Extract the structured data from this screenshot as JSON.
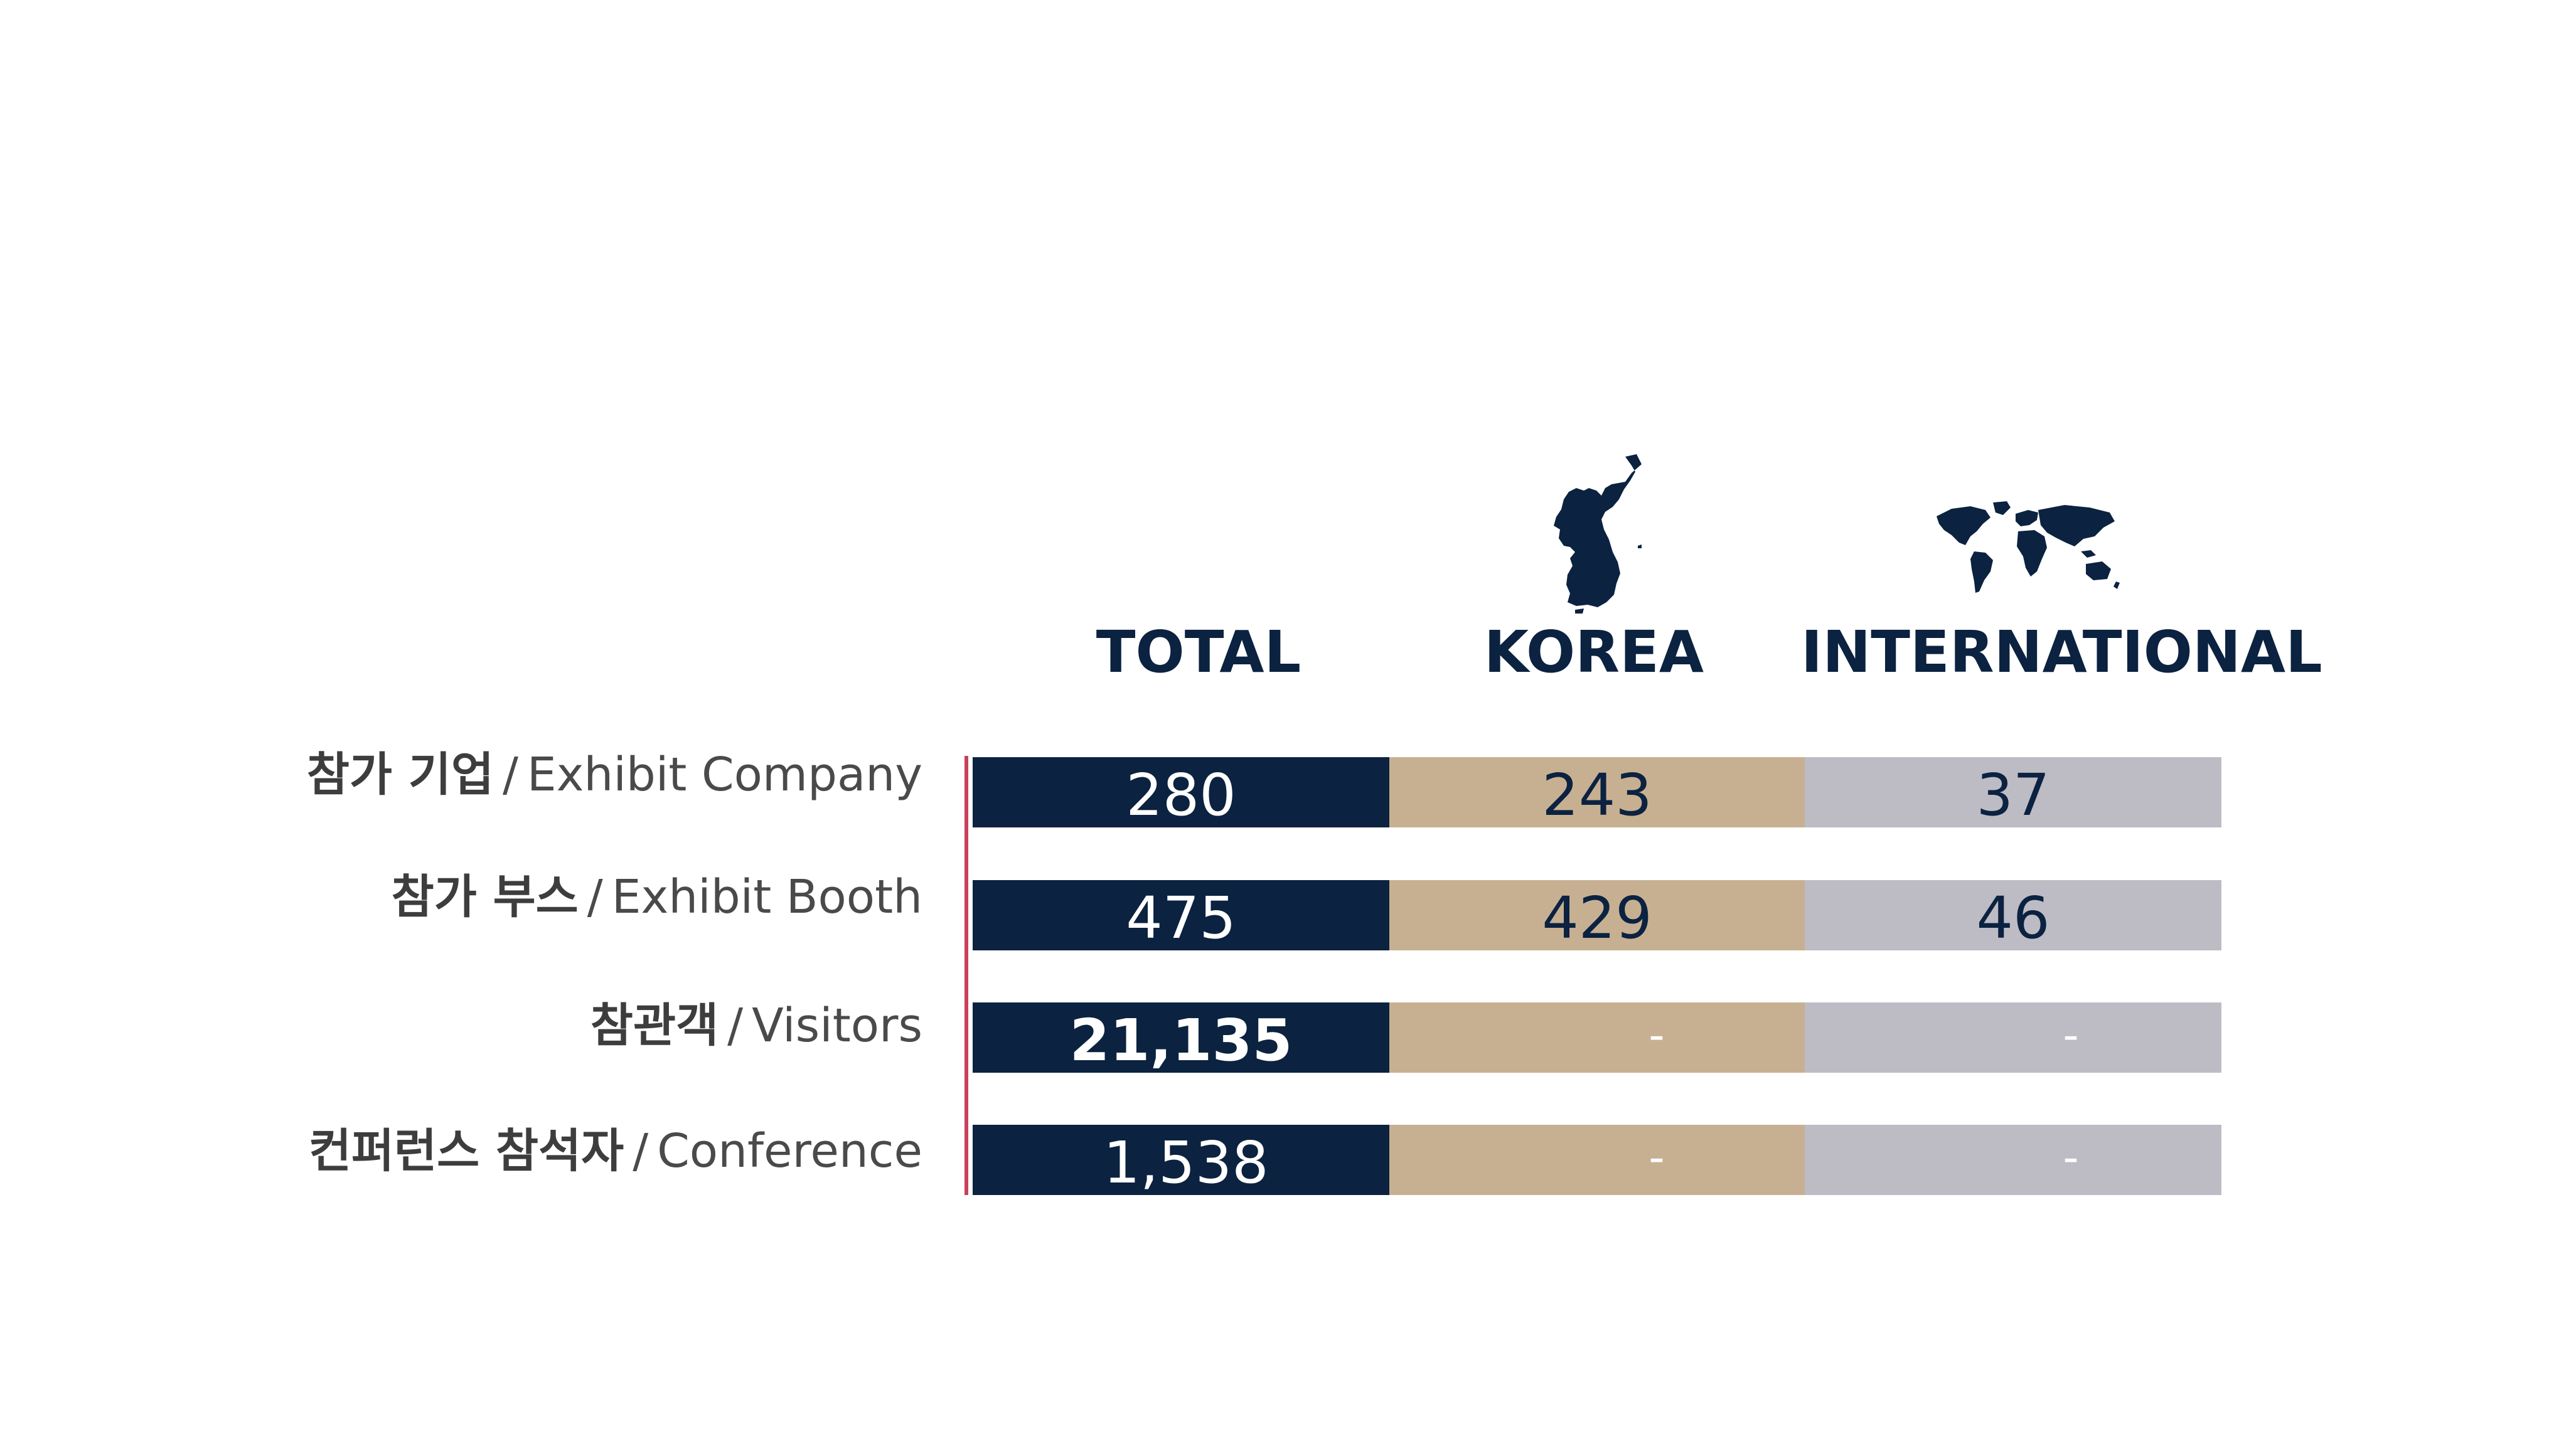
{
  "colors": {
    "total": "#0b2240",
    "korea": "#c7b092",
    "international": "#bdbcc4",
    "axis": "#c8405a",
    "heading": "#0b2240"
  },
  "icons": {
    "korea": "korea-map-icon",
    "international": "world-map-icon"
  },
  "chart_data": {
    "type": "table",
    "columns": [
      "TOTAL",
      "KOREA",
      "INTERNATIONAL"
    ],
    "rows": [
      {
        "label_ko": "참가 기업",
        "label_en": "Exhibit Company",
        "total": "280",
        "korea": "243",
        "international": "37"
      },
      {
        "label_ko": "참가 부스",
        "label_en": "Exhibit Booth",
        "total": "475",
        "korea": "429",
        "international": "46"
      },
      {
        "label_ko": "참관객",
        "label_en": "Visitors",
        "total": "21,135",
        "korea": "-",
        "international": "-"
      },
      {
        "label_ko": "컨퍼런스 참석자",
        "label_en": "Conference",
        "total": "1,538",
        "korea": "-",
        "international": "-"
      }
    ],
    "separator": "/"
  }
}
